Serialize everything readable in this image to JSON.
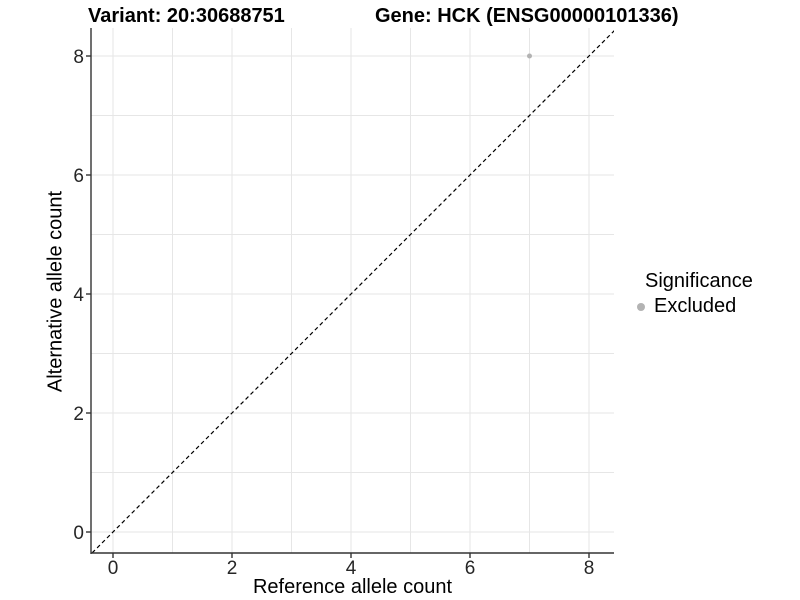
{
  "titles": {
    "variant": "Variant: 20:30688751",
    "gene": "Gene: HCK (ENSG00000101336)"
  },
  "chart_data": {
    "type": "scatter",
    "x": {
      "label": "Reference allele count",
      "ticks": [
        0,
        2,
        4,
        6,
        8
      ],
      "gridlines": [
        0,
        1,
        2,
        3,
        4,
        5,
        6,
        7,
        8
      ],
      "lim": [
        -0.37,
        8.42
      ]
    },
    "y": {
      "label": "Alternative allele count",
      "ticks": [
        0,
        2,
        4,
        6,
        8
      ],
      "gridlines": [
        0,
        1,
        2,
        3,
        4,
        5,
        6,
        7,
        8
      ],
      "lim": [
        -0.35,
        8.47
      ]
    },
    "identity_line": {
      "style": "dashed",
      "slope": 1,
      "intercept": 0,
      "color": "#000000"
    },
    "series": [
      {
        "name": "Excluded",
        "color": "#b3b3b3",
        "points": [
          {
            "x": 7,
            "y": 8
          }
        ]
      }
    ]
  },
  "legend": {
    "title": "Significance",
    "items": [
      {
        "label": "Excluded",
        "color": "#b3b3b3"
      }
    ]
  },
  "colors": {
    "background": "#ffffff",
    "grid": "#e6e6e6",
    "axis_line": "#333333",
    "tick": "#333333",
    "tick_label": "#262626",
    "point": "#b3b3b3"
  }
}
